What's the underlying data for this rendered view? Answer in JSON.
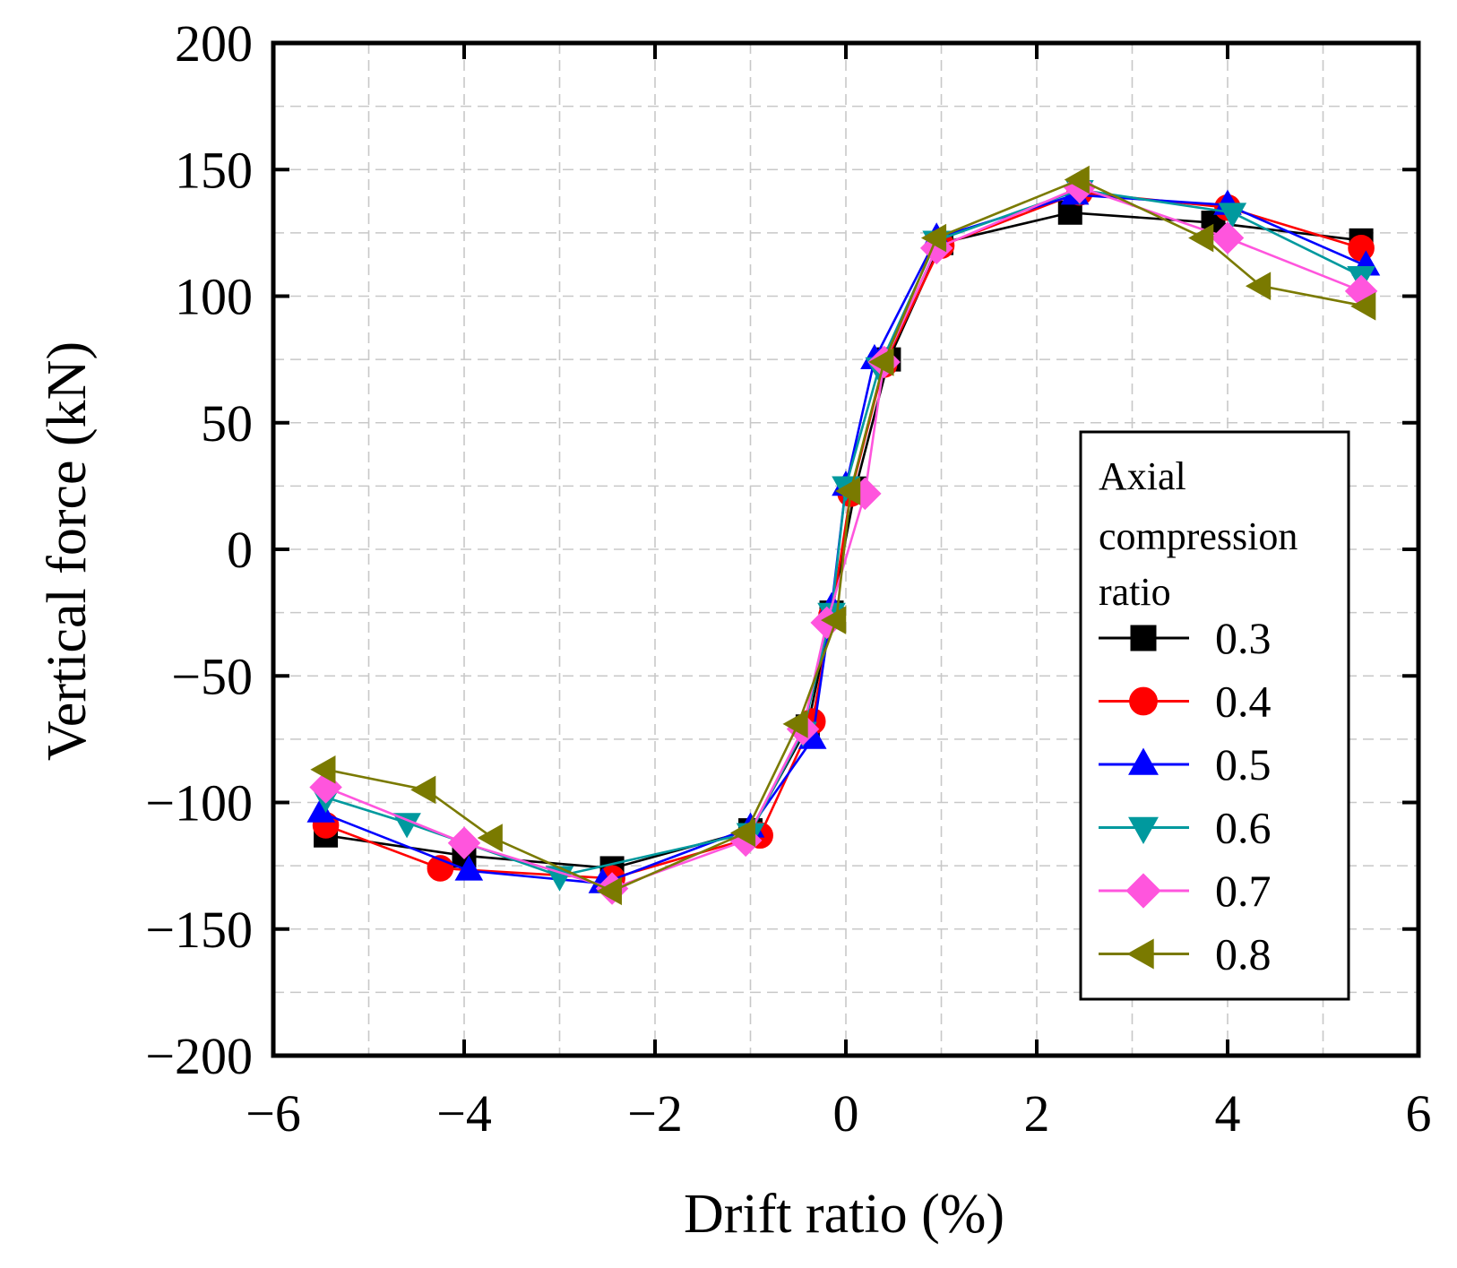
{
  "chart_data": {
    "type": "line",
    "title": "",
    "xlabel": "Drift ratio (%)",
    "ylabel": "Vertical force (kN)",
    "xlim": [
      -6,
      6
    ],
    "ylim": [
      -200,
      200
    ],
    "xticks": [
      -6,
      -4,
      -2,
      0,
      2,
      4,
      6
    ],
    "yticks": [
      -200,
      -150,
      -100,
      -50,
      0,
      50,
      100,
      150,
      200
    ],
    "xtick_labels": [
      "−6",
      "−4",
      "−2",
      "0",
      "2",
      "4",
      "6"
    ],
    "ytick_labels": [
      "−200",
      "−150",
      "−100",
      "−50",
      "0",
      "50",
      "100",
      "150",
      "200"
    ],
    "grid": true,
    "legend": {
      "title_lines": [
        "Axial",
        "compression",
        "ratio"
      ],
      "position": "right"
    },
    "series": [
      {
        "name": "0.3",
        "color": "#000000",
        "marker": "square",
        "x": [
          -5.45,
          -4.0,
          -2.45,
          -1.0,
          -0.4,
          -0.15,
          0.1,
          0.45,
          1.0,
          2.35,
          3.85,
          5.4
        ],
        "y": [
          -113,
          -121,
          -126,
          -111,
          -70,
          -25,
          24,
          75,
          121,
          133,
          129,
          122
        ]
      },
      {
        "name": "0.4",
        "color": "#ff0000",
        "marker": "circle",
        "x": [
          -5.45,
          -4.25,
          -2.45,
          -0.9,
          -0.35,
          -0.15,
          0.05,
          0.4,
          1.0,
          2.45,
          4.0,
          5.4
        ],
        "y": [
          -109,
          -126,
          -130,
          -113,
          -68,
          -26,
          22,
          73,
          120,
          141,
          135,
          119
        ]
      },
      {
        "name": "0.5",
        "color": "#0000ff",
        "marker": "triangle-up",
        "x": [
          -5.5,
          -3.95,
          -2.55,
          -1.0,
          -0.35,
          -0.15,
          0.0,
          0.3,
          0.95,
          2.4,
          4.0,
          5.45
        ],
        "y": [
          -104,
          -127,
          -132,
          -110,
          -75,
          -23,
          25,
          75,
          123,
          140,
          136,
          112
        ]
      },
      {
        "name": "0.6",
        "color": "#00999e",
        "marker": "triangle-down",
        "x": [
          -5.45,
          -4.6,
          -3.0,
          -1.0,
          -0.45,
          -0.15,
          0.0,
          0.35,
          0.95,
          2.45,
          4.05,
          5.4
        ],
        "y": [
          -98,
          -108,
          -129,
          -112,
          -72,
          -25,
          25,
          72,
          122,
          142,
          133,
          108
        ]
      },
      {
        "name": "0.7",
        "color": "#ff55dd",
        "marker": "diamond",
        "x": [
          -5.45,
          -4.0,
          -2.45,
          -1.05,
          -0.45,
          -0.2,
          0.2,
          0.4,
          0.95,
          2.45,
          4.0,
          5.4
        ],
        "y": [
          -94,
          -116,
          -134,
          -115,
          -71,
          -29,
          22,
          74,
          119,
          143,
          123,
          102
        ]
      },
      {
        "name": "0.8",
        "color": "#7a7a00",
        "marker": "triangle-left",
        "x": [
          -5.45,
          -4.4,
          -3.7,
          -2.45,
          -1.05,
          -0.5,
          -0.1,
          0.05,
          0.4,
          0.95,
          2.45,
          3.75,
          4.35,
          5.45
        ],
        "y": [
          -87,
          -95,
          -114,
          -135,
          -112,
          -69,
          -28,
          23,
          74,
          123,
          146,
          123,
          104,
          96
        ]
      }
    ]
  }
}
